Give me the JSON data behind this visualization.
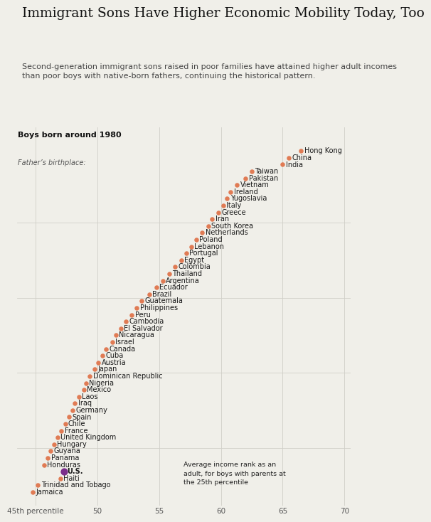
{
  "title": "Immigrant Sons Have Higher Economic Mobility Today, Too",
  "subtitle": "Second-generation immigrant sons raised in poor families have attained higher adult incomes\nthan poor boys with native-born fathers, continuing the historical pattern.",
  "dot_color": "#E07B54",
  "us_color": "#7B2D8B",
  "background_color": "#F0EFE9",
  "gridline_color": "#D0CFC8",
  "xlim": [
    43.5,
    70.5
  ],
  "xticks": [
    45,
    50,
    55,
    60,
    65,
    70
  ],
  "xtick_labels": [
    "45th percentile",
    "50",
    "55",
    "60",
    "65",
    "70"
  ],
  "title_fontsize": 13.5,
  "subtitle_fontsize": 8,
  "label_fontsize": 7,
  "axis_fontsize": 7.5,
  "annotation_box": "Average income rank as an\nadult, for boys with parents at\nthe 25th percentile",
  "countries": [
    {
      "name": "Hong Kong",
      "x": 66.5
    },
    {
      "name": "China",
      "x": 65.5
    },
    {
      "name": "India",
      "x": 65.0
    },
    {
      "name": "Taiwan",
      "x": 62.5
    },
    {
      "name": "Pakistan",
      "x": 62.0
    },
    {
      "name": "Vietnam",
      "x": 61.3
    },
    {
      "name": "Ireland",
      "x": 60.8
    },
    {
      "name": "Yugoslavia",
      "x": 60.5
    },
    {
      "name": "Italy",
      "x": 60.2
    },
    {
      "name": "Greece",
      "x": 59.8
    },
    {
      "name": "Iran",
      "x": 59.3
    },
    {
      "name": "South Korea",
      "x": 59.0
    },
    {
      "name": "Netherlands",
      "x": 58.5
    },
    {
      "name": "Poland",
      "x": 58.0
    },
    {
      "name": "Lebanon",
      "x": 57.6
    },
    {
      "name": "Portugal",
      "x": 57.2
    },
    {
      "name": "Egypt",
      "x": 56.8
    },
    {
      "name": "Colombia",
      "x": 56.3
    },
    {
      "name": "Thailand",
      "x": 55.8
    },
    {
      "name": "Argentina",
      "x": 55.3
    },
    {
      "name": "Ecuador",
      "x": 54.8
    },
    {
      "name": "Brazil",
      "x": 54.2
    },
    {
      "name": "Guatemala",
      "x": 53.6
    },
    {
      "name": "Philippines",
      "x": 53.2
    },
    {
      "name": "Peru",
      "x": 52.8
    },
    {
      "name": "Cambodia",
      "x": 52.3
    },
    {
      "name": "El Salvador",
      "x": 51.9
    },
    {
      "name": "Nicaragua",
      "x": 51.5
    },
    {
      "name": "Israel",
      "x": 51.2
    },
    {
      "name": "Canada",
      "x": 50.7
    },
    {
      "name": "Cuba",
      "x": 50.4
    },
    {
      "name": "Austria",
      "x": 50.1
    },
    {
      "name": "Japan",
      "x": 49.8
    },
    {
      "name": "Dominican Republic",
      "x": 49.4
    },
    {
      "name": "Nigeria",
      "x": 49.1
    },
    {
      "name": "Mexico",
      "x": 48.9
    },
    {
      "name": "Laos",
      "x": 48.5
    },
    {
      "name": "Iraq",
      "x": 48.2
    },
    {
      "name": "Germany",
      "x": 48.0
    },
    {
      "name": "Spain",
      "x": 47.7
    },
    {
      "name": "Chile",
      "x": 47.4
    },
    {
      "name": "France",
      "x": 47.1
    },
    {
      "name": "United Kingdom",
      "x": 46.8
    },
    {
      "name": "Hungary",
      "x": 46.5
    },
    {
      "name": "Guyana",
      "x": 46.2
    },
    {
      "name": "Panama",
      "x": 46.0
    },
    {
      "name": "Honduras",
      "x": 45.7
    },
    {
      "name": "Haiti",
      "x": 47.0
    },
    {
      "name": "Trinidad and Tobago",
      "x": 45.2
    },
    {
      "name": "Jamaica",
      "x": 44.8
    }
  ],
  "us": {
    "name": "U.S.",
    "x": 47.3
  },
  "horiz_dividers": [
    11,
    22,
    33,
    44
  ]
}
